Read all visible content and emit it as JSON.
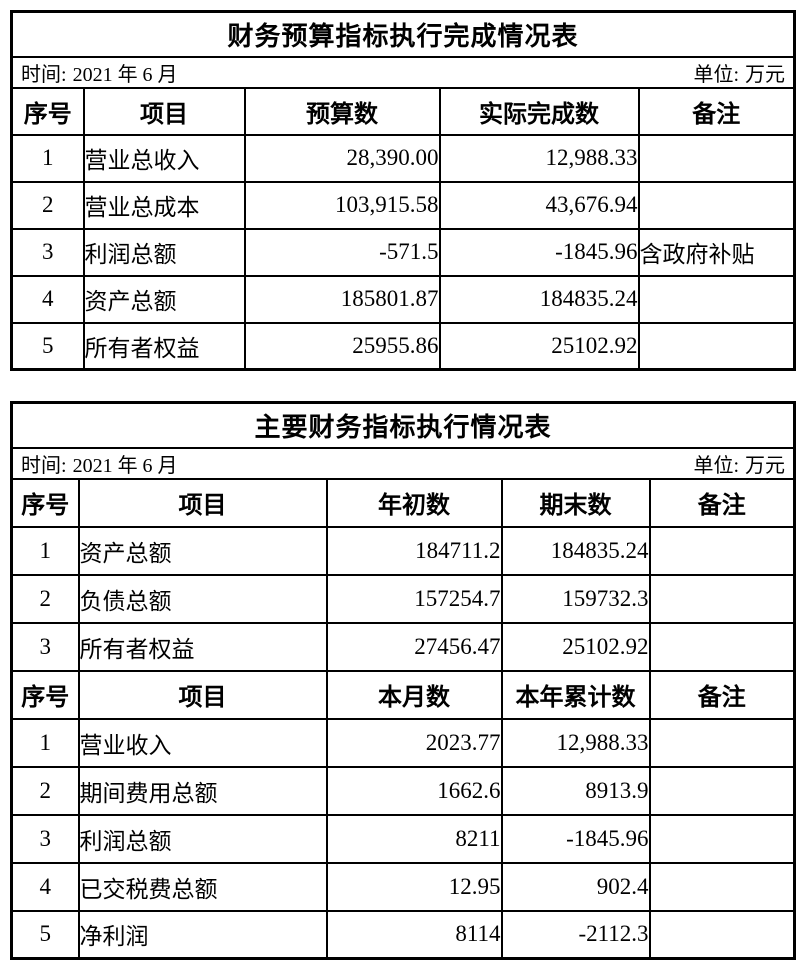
{
  "colors": {
    "border": "#000000",
    "background": "#ffffff",
    "text": "#000000"
  },
  "table1": {
    "title": "财务预算指标执行完成情况表",
    "time_label": "时间:",
    "time_value": "2021 年 6 月",
    "unit_label": "单位:",
    "unit_value": "万元",
    "headers": [
      "序号",
      "项目",
      "预算数",
      "实际完成数",
      "备注"
    ],
    "rows": [
      {
        "no": "1",
        "item": "营业总收入",
        "budget": "28,390.00",
        "actual": "12,988.33",
        "note": ""
      },
      {
        "no": "2",
        "item": "营业总成本",
        "budget": "103,915.58",
        "actual": "43,676.94",
        "note": ""
      },
      {
        "no": "3",
        "item": "利润总额",
        "budget": "-571.5",
        "actual": "-1845.96",
        "note": "含政府补贴"
      },
      {
        "no": "4",
        "item": "资产总额",
        "budget": "185801.87",
        "actual": "184835.24",
        "note": ""
      },
      {
        "no": "5",
        "item": "所有者权益",
        "budget": "25955.86",
        "actual": "25102.92",
        "note": ""
      }
    ]
  },
  "table2": {
    "title": "主要财务指标执行情况表",
    "time_label": "时间:",
    "time_value": "2021 年 6 月",
    "unit_label": "单位:",
    "unit_value": "万元",
    "section1": {
      "headers": [
        "序号",
        "项目",
        "年初数",
        "期末数",
        "备注"
      ],
      "rows": [
        {
          "no": "1",
          "item": "资产总额",
          "start": "184711.2",
          "end": "184835.24",
          "note": ""
        },
        {
          "no": "2",
          "item": "负债总额",
          "start": "157254.7",
          "end": "159732.3",
          "note": ""
        },
        {
          "no": "3",
          "item": "所有者权益",
          "start": "27456.47",
          "end": "25102.92",
          "note": ""
        }
      ]
    },
    "section2": {
      "headers": [
        "序号",
        "项目",
        "本月数",
        "本年累计数",
        "备注"
      ],
      "rows": [
        {
          "no": "1",
          "item": "营业收入",
          "month": "2023.77",
          "ytd": "12,988.33",
          "note": ""
        },
        {
          "no": "2",
          "item": "期间费用总额",
          "month": "1662.6",
          "ytd": "8913.9",
          "note": ""
        },
        {
          "no": "3",
          "item": "利润总额",
          "month": "8211",
          "ytd": "-1845.96",
          "note": ""
        },
        {
          "no": "4",
          "item": "已交税费总额",
          "month": "12.95",
          "ytd": "902.4",
          "note": ""
        },
        {
          "no": "5",
          "item": "净利润",
          "month": "8114",
          "ytd": "-2112.3",
          "note": ""
        }
      ]
    }
  }
}
